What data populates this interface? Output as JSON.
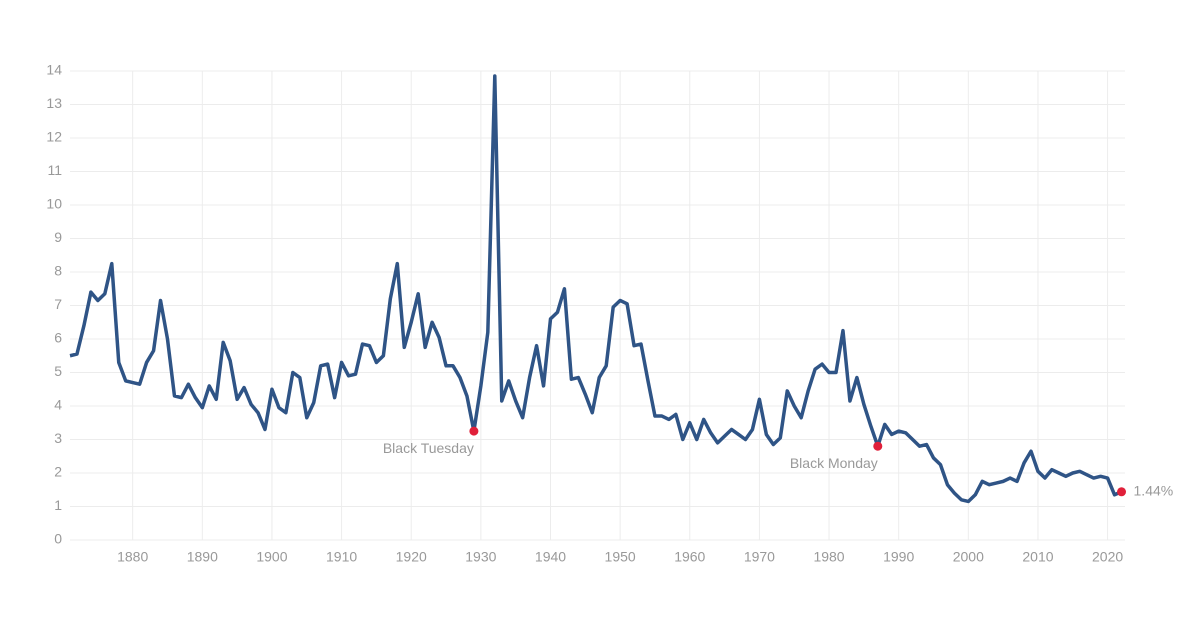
{
  "chart_data": {
    "type": "line",
    "x": [
      1871,
      1872,
      1873,
      1874,
      1875,
      1876,
      1877,
      1878,
      1879,
      1880,
      1881,
      1882,
      1883,
      1884,
      1885,
      1886,
      1887,
      1888,
      1889,
      1890,
      1891,
      1892,
      1893,
      1894,
      1895,
      1896,
      1897,
      1898,
      1899,
      1900,
      1901,
      1902,
      1903,
      1904,
      1905,
      1906,
      1907,
      1908,
      1909,
      1910,
      1911,
      1912,
      1913,
      1914,
      1915,
      1916,
      1917,
      1918,
      1919,
      1920,
      1921,
      1922,
      1923,
      1924,
      1925,
      1926,
      1927,
      1928,
      1929,
      1930,
      1931,
      1932,
      1933,
      1934,
      1935,
      1936,
      1937,
      1938,
      1939,
      1940,
      1941,
      1942,
      1943,
      1944,
      1945,
      1946,
      1947,
      1948,
      1949,
      1950,
      1951,
      1952,
      1953,
      1954,
      1955,
      1956,
      1957,
      1958,
      1959,
      1960,
      1961,
      1962,
      1963,
      1964,
      1965,
      1966,
      1967,
      1968,
      1969,
      1970,
      1971,
      1972,
      1973,
      1974,
      1975,
      1976,
      1977,
      1978,
      1979,
      1980,
      1981,
      1982,
      1983,
      1984,
      1985,
      1986,
      1987,
      1988,
      1989,
      1990,
      1991,
      1992,
      1993,
      1994,
      1995,
      1996,
      1997,
      1998,
      1999,
      2000,
      2001,
      2002,
      2003,
      2004,
      2005,
      2006,
      2007,
      2008,
      2009,
      2010,
      2011,
      2012,
      2013,
      2014,
      2015,
      2016,
      2017,
      2018,
      2019,
      2020,
      2021,
      2022
    ],
    "series": [
      {
        "color": "#2f5486",
        "values": [
          5.5,
          5.55,
          6.4,
          7.4,
          7.15,
          7.35,
          8.25,
          5.3,
          4.75,
          4.7,
          4.65,
          5.3,
          5.65,
          7.15,
          6.0,
          4.3,
          4.25,
          4.65,
          4.25,
          3.95,
          4.6,
          4.2,
          5.9,
          5.35,
          4.2,
          4.55,
          4.05,
          3.8,
          3.3,
          4.5,
          3.95,
          3.8,
          5.0,
          4.85,
          3.65,
          4.1,
          5.2,
          5.25,
          4.25,
          5.3,
          4.9,
          4.95,
          5.85,
          5.8,
          5.3,
          5.5,
          7.2,
          8.25,
          5.75,
          6.5,
          7.35,
          5.75,
          6.5,
          6.05,
          5.2,
          5.2,
          4.85,
          4.3,
          3.25,
          4.6,
          6.2,
          13.85,
          4.15,
          4.75,
          4.15,
          3.65,
          4.85,
          5.8,
          4.6,
          6.6,
          6.8,
          7.5,
          4.8,
          4.85,
          4.35,
          3.8,
          4.85,
          5.2,
          6.95,
          7.15,
          7.05,
          5.8,
          5.85,
          4.75,
          3.7,
          3.7,
          3.6,
          3.75,
          3.0,
          3.5,
          3.0,
          3.6,
          3.2,
          2.9,
          3.1,
          3.3,
          3.15,
          3.0,
          3.3,
          4.2,
          3.15,
          2.85,
          3.05,
          4.45,
          4.0,
          3.65,
          4.45,
          5.1,
          5.25,
          5.0,
          5.0,
          6.25,
          4.15,
          4.85,
          4.05,
          3.4,
          2.8,
          3.45,
          3.15,
          3.25,
          3.2,
          3.0,
          2.8,
          2.85,
          2.45,
          2.25,
          1.65,
          1.4,
          1.2,
          1.15,
          1.35,
          1.75,
          1.65,
          1.7,
          1.75,
          1.85,
          1.75,
          2.3,
          2.65,
          2.05,
          1.85,
          2.1,
          2.0,
          1.9,
          2.0,
          2.05,
          1.95,
          1.85,
          1.9,
          1.85,
          1.35,
          1.44
        ]
      }
    ],
    "xlim": [
      1871,
      2022.5
    ],
    "xticks": [
      1880,
      1890,
      1900,
      1910,
      1920,
      1930,
      1940,
      1950,
      1960,
      1970,
      1980,
      1990,
      2000,
      2010,
      2020
    ],
    "ylim": [
      0,
      14
    ],
    "yticks": [
      0,
      1,
      2,
      3,
      4,
      5,
      6,
      7,
      8,
      9,
      10,
      11,
      12,
      13,
      14
    ],
    "grid": true,
    "annotations": [
      {
        "text": "Black Tuesday",
        "x": 1929,
        "y": 3.25,
        "color": "#e0203a"
      },
      {
        "text": "Black Monday",
        "x": 1987,
        "y": 2.8,
        "color": "#e0203a"
      },
      {
        "text": "1.44%",
        "x": 2022,
        "y": 1.44,
        "color": "#e0203a"
      }
    ]
  }
}
